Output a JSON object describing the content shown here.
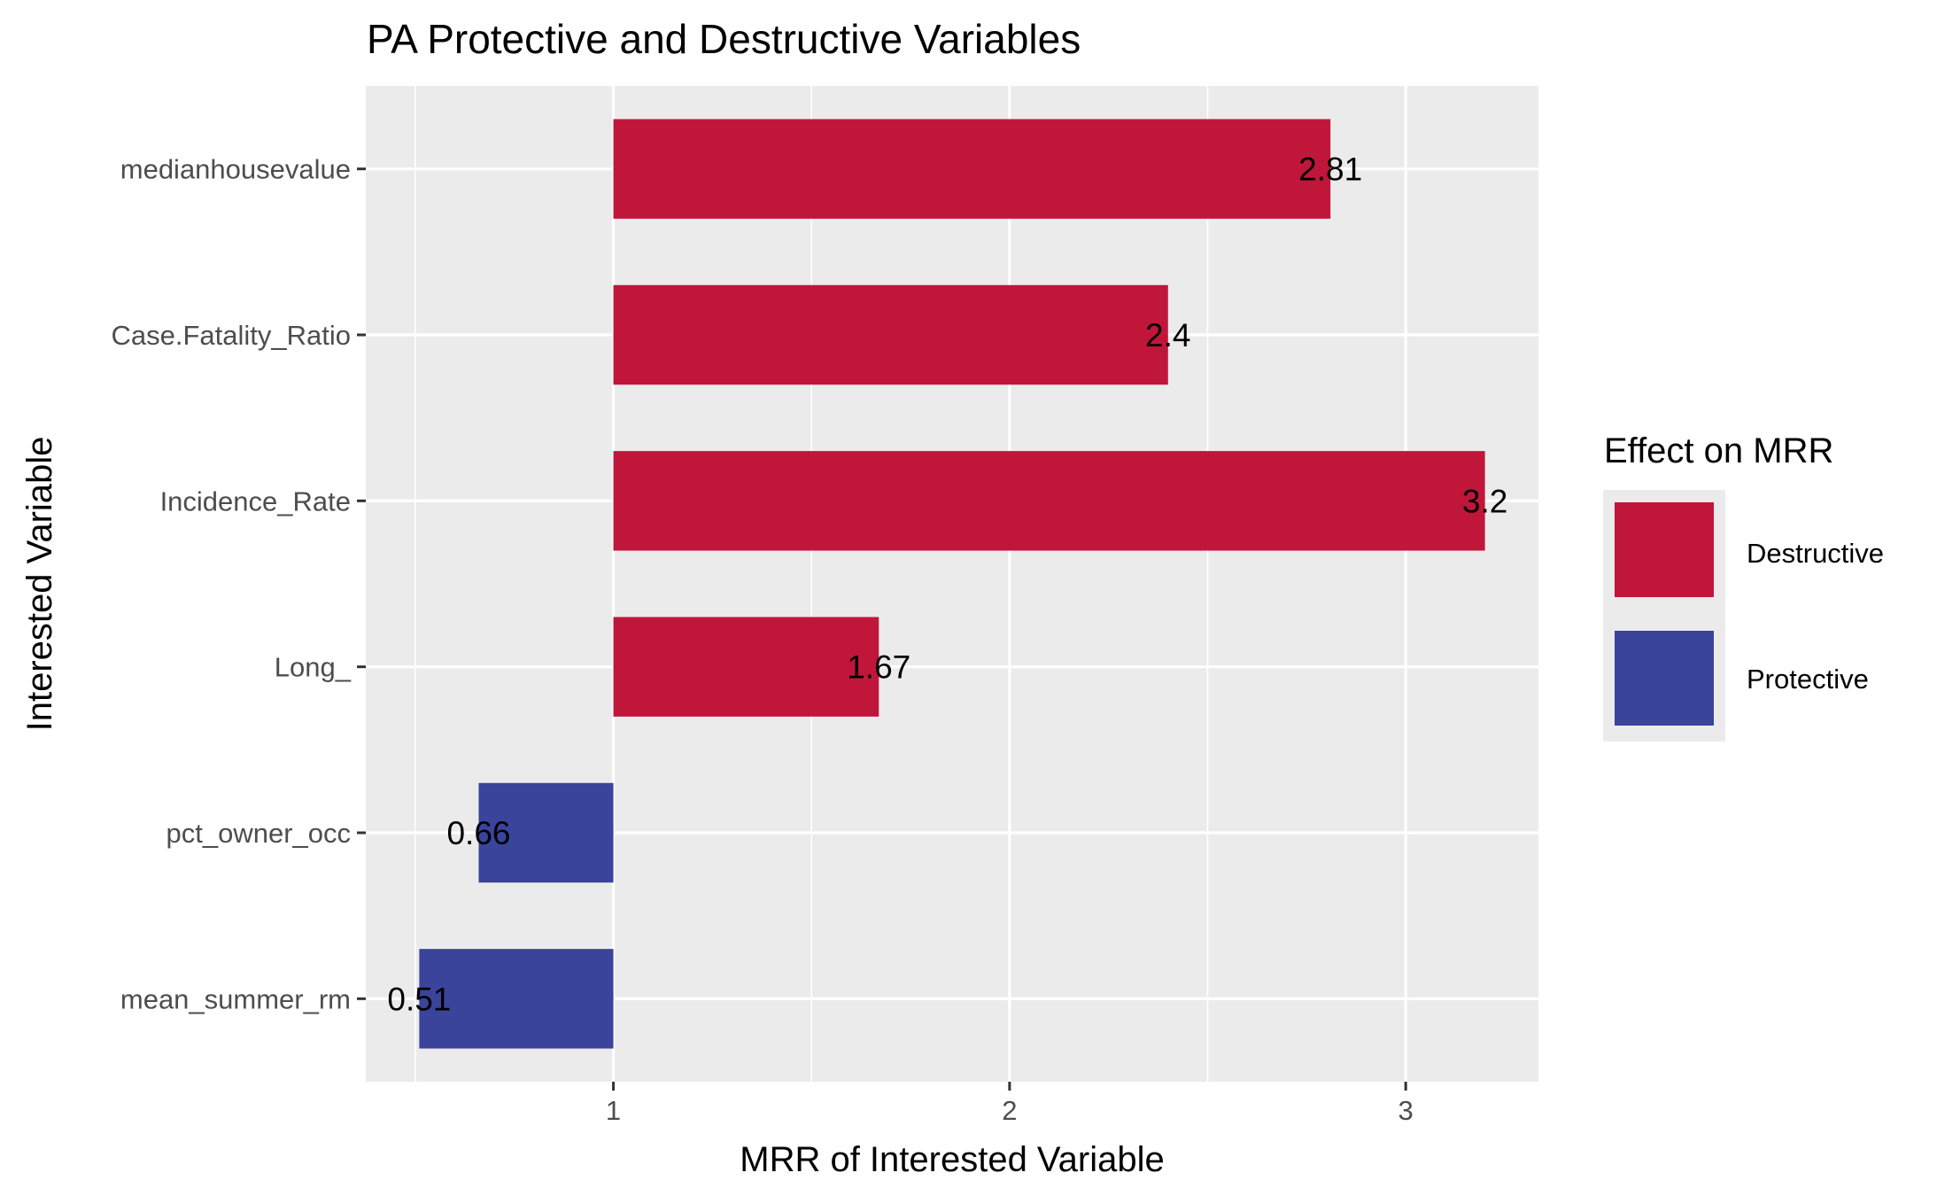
{
  "chart_data": {
    "type": "bar",
    "orientation": "horizontal",
    "title": "PA Protective and Destructive Variables",
    "xlabel": "MRR of Interested Variable",
    "ylabel": "Interested Variable",
    "baseline": 1,
    "xlim": [
      0.375,
      3.335
    ],
    "xticks": [
      1,
      2,
      3
    ],
    "xtick_labels": [
      "1",
      "2",
      "3"
    ],
    "grid": true,
    "categories": [
      "medianhousevalue",
      "Case.Fatality_Ratio",
      "Incidence_Rate",
      "Long_",
      "pct_owner_occ",
      "mean_summer_rm"
    ],
    "values": [
      2.81,
      2.4,
      3.2,
      1.67,
      0.66,
      0.51
    ],
    "value_labels": [
      "2.81",
      "2.4",
      "3.2",
      "1.67",
      "0.66",
      "0.51"
    ],
    "effects": [
      "Destructive",
      "Destructive",
      "Destructive",
      "Destructive",
      "Protective",
      "Protective"
    ],
    "legend": {
      "title": "Effect on MRR",
      "position": "right",
      "entries": [
        {
          "label": "Destructive",
          "color": "#c0163a"
        },
        {
          "label": "Protective",
          "color": "#3a449b"
        }
      ]
    },
    "colors": {
      "panel": "#ebebeb",
      "grid_major": "#ffffff",
      "destructive": "#c0163a",
      "protective": "#3a449b"
    }
  }
}
